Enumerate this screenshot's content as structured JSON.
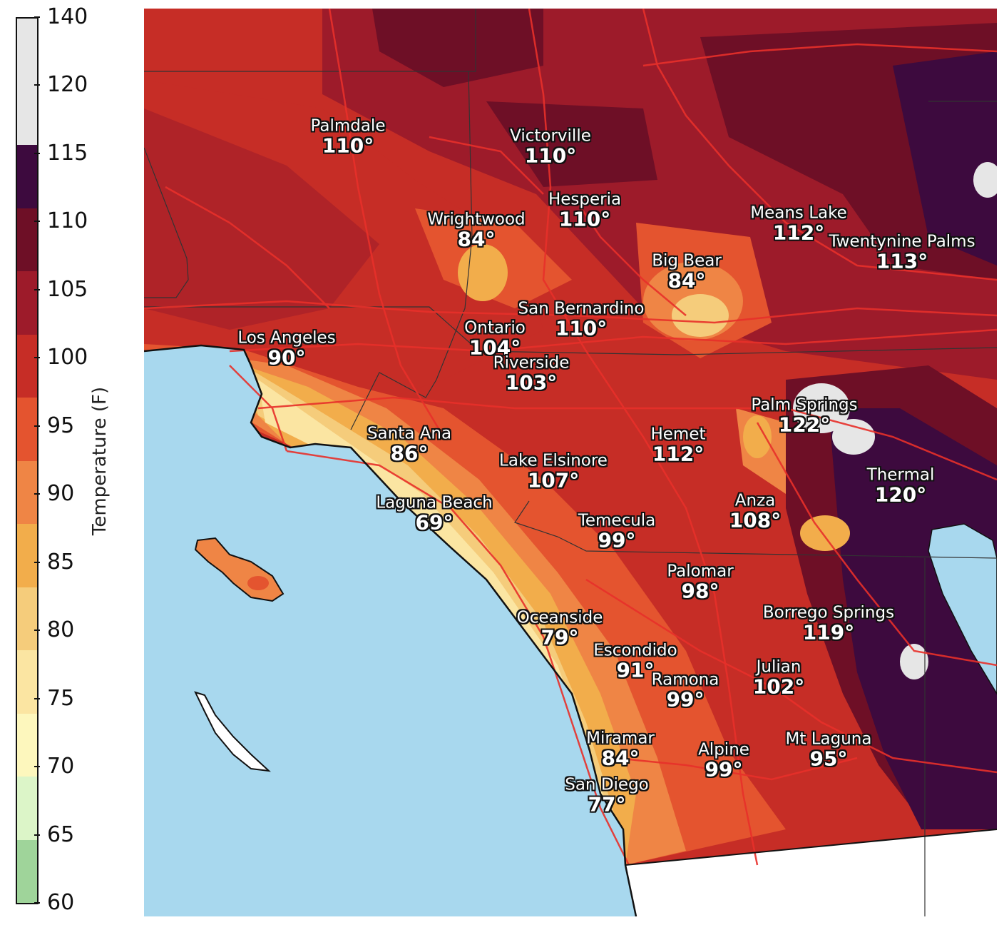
{
  "colorbar": {
    "title": "Temperature (F)",
    "ticks": [
      "140",
      "120",
      "115",
      "110",
      "105",
      "100",
      "95",
      "90",
      "85",
      "80",
      "75",
      "70",
      "65",
      "60"
    ],
    "bands": [
      {
        "range": "120-140",
        "color": "#e6e6e6"
      },
      {
        "range": "115-120",
        "color": "#3d0a3e"
      },
      {
        "range": "110-115",
        "color": "#6e0f26"
      },
      {
        "range": "105-110",
        "color": "#9d1b2a"
      },
      {
        "range": "100-105",
        "color": "#c62d26"
      },
      {
        "range": "95-100",
        "color": "#e4542f"
      },
      {
        "range": "90-95",
        "color": "#ef8545"
      },
      {
        "range": "85-90",
        "color": "#f2ad4b"
      },
      {
        "range": "80-85",
        "color": "#f5cc7b"
      },
      {
        "range": "75-80",
        "color": "#fbe5a2"
      },
      {
        "range": "70-75",
        "color": "#fdf7bd"
      },
      {
        "range": "65-70",
        "color": "#dcf5c8"
      },
      {
        "range": "60-65",
        "color": "#9fd49a"
      }
    ]
  },
  "colors": {
    "ocean": "#a8d8ee",
    "roads": "#e8302a",
    "boundaries": "#333333",
    "coastline": "#111111"
  },
  "cities": [
    {
      "name": "Palmdale",
      "temp": "110°"
    },
    {
      "name": "Victorville",
      "temp": "110°"
    },
    {
      "name": "Hesperia",
      "temp": "110°"
    },
    {
      "name": "Wrightwood",
      "temp": "84°"
    },
    {
      "name": "Means Lake",
      "temp": "112°"
    },
    {
      "name": "Twentynine Palms",
      "temp": "113°"
    },
    {
      "name": "Big Bear",
      "temp": "84°"
    },
    {
      "name": "San Bernardino",
      "temp": "110°"
    },
    {
      "name": "Ontario",
      "temp": "104°"
    },
    {
      "name": "Los Angeles",
      "temp": "90°"
    },
    {
      "name": "Riverside",
      "temp": "103°"
    },
    {
      "name": "Palm Springs",
      "temp": "122°"
    },
    {
      "name": "Santa Ana",
      "temp": "86°"
    },
    {
      "name": "Hemet",
      "temp": "112°"
    },
    {
      "name": "Lake Elsinore",
      "temp": "107°"
    },
    {
      "name": "Thermal",
      "temp": "120°"
    },
    {
      "name": "Laguna Beach",
      "temp": "69°"
    },
    {
      "name": "Anza",
      "temp": "108°"
    },
    {
      "name": "Temecula",
      "temp": "99°"
    },
    {
      "name": "Palomar",
      "temp": "98°"
    },
    {
      "name": "Oceanside",
      "temp": "79°"
    },
    {
      "name": "Borrego Springs",
      "temp": "119°"
    },
    {
      "name": "Escondido",
      "temp": "91°"
    },
    {
      "name": "Julian",
      "temp": "102°"
    },
    {
      "name": "Ramona",
      "temp": "99°"
    },
    {
      "name": "Miramar",
      "temp": "84°"
    },
    {
      "name": "Mt Laguna",
      "temp": "95°"
    },
    {
      "name": "Alpine",
      "temp": "99°"
    },
    {
      "name": "San Diego",
      "temp": "77°"
    }
  ]
}
